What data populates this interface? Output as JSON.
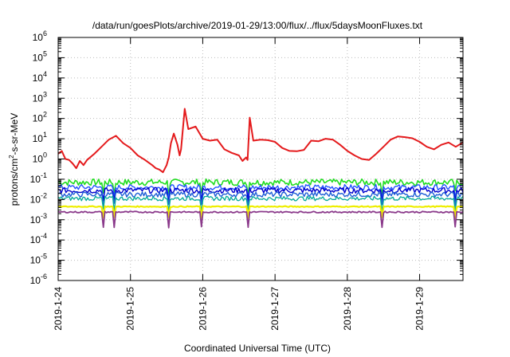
{
  "chart_data": {
    "type": "line",
    "title": "/data/run/goesPlots/archive/2019-01-29/13:00/flux/../flux/5daysMoonFluxes.txt",
    "xlabel": "Coordinated Universal Time (UTC)",
    "ylabel": {
      "base": "protons/cm",
      "sup": "2",
      "rest": "-s-sr-MeV"
    },
    "yscale": "log",
    "ylim": [
      1e-06,
      1000000.0
    ],
    "xlim": [
      0,
      5.6
    ],
    "y_ticks": [
      {
        "exp": -6,
        "base": "10",
        "sup": "-6"
      },
      {
        "exp": -5,
        "base": "10",
        "sup": "-5"
      },
      {
        "exp": -4,
        "base": "10",
        "sup": "-4"
      },
      {
        "exp": -3,
        "base": "10",
        "sup": "-3"
      },
      {
        "exp": -2,
        "base": "10",
        "sup": "-2"
      },
      {
        "exp": -1,
        "base": "10",
        "sup": "-1"
      },
      {
        "exp": 0,
        "base": "10",
        "sup": "0"
      },
      {
        "exp": 1,
        "base": "10",
        "sup": "1"
      },
      {
        "exp": 2,
        "base": "10",
        "sup": "2"
      },
      {
        "exp": 3,
        "base": "10",
        "sup": "3"
      },
      {
        "exp": 4,
        "base": "10",
        "sup": "4"
      },
      {
        "exp": 5,
        "base": "10",
        "sup": "5"
      },
      {
        "exp": 6,
        "base": "10",
        "sup": "6"
      }
    ],
    "x_ticks": [
      {
        "pos": 0,
        "label": "2019-1-24"
      },
      {
        "pos": 1,
        "label": "2019-1-25"
      },
      {
        "pos": 2,
        "label": "2019-1-26"
      },
      {
        "pos": 3,
        "label": "2019-1-27"
      },
      {
        "pos": 4,
        "label": "2019-1-28"
      },
      {
        "pos": 5,
        "label": "2019-1-29"
      }
    ],
    "grid": true,
    "series": [
      {
        "color": "#e41a1c",
        "width": 2,
        "x": [
          0.0,
          0.05,
          0.1,
          0.15,
          0.2,
          0.25,
          0.3,
          0.35,
          0.4,
          0.5,
          0.6,
          0.7,
          0.8,
          0.9,
          1.0,
          1.1,
          1.2,
          1.3,
          1.35,
          1.4,
          1.45,
          1.5,
          1.53,
          1.56,
          1.6,
          1.65,
          1.68,
          1.7,
          1.75,
          1.8,
          1.9,
          2.0,
          2.1,
          2.2,
          2.3,
          2.4,
          2.5,
          2.55,
          2.6,
          2.62,
          2.65,
          2.7,
          2.8,
          2.9,
          3.0,
          3.1,
          3.2,
          3.3,
          3.4,
          3.5,
          3.6,
          3.7,
          3.8,
          3.9,
          4.0,
          4.1,
          4.2,
          4.3,
          4.4,
          4.5,
          4.6,
          4.7,
          4.8,
          4.9,
          5.0,
          5.1,
          5.2,
          5.3,
          5.4,
          5.5,
          5.6
        ],
        "y": [
          1.8,
          2.5,
          1.0,
          0.9,
          0.6,
          0.35,
          0.8,
          0.5,
          0.9,
          1.8,
          4.0,
          9.0,
          14.0,
          6.0,
          3.5,
          1.5,
          0.9,
          0.5,
          0.35,
          0.3,
          0.22,
          0.5,
          1.2,
          6.0,
          18.0,
          5.0,
          1.5,
          3.0,
          300.0,
          30.0,
          40.0,
          10.0,
          8.0,
          9.0,
          3.0,
          2.0,
          1.5,
          0.8,
          1.2,
          0.9,
          110.0,
          8.0,
          9.0,
          8.5,
          7.0,
          3.5,
          2.5,
          2.4,
          2.8,
          8.0,
          7.5,
          10.0,
          9.0,
          5.0,
          2.5,
          1.5,
          1.0,
          0.9,
          1.8,
          4.0,
          9.0,
          13.0,
          12.0,
          10.5,
          7.0,
          4.0,
          3.0,
          5.0,
          6.5,
          4.0,
          6.5
        ]
      }
    ]
  }
}
